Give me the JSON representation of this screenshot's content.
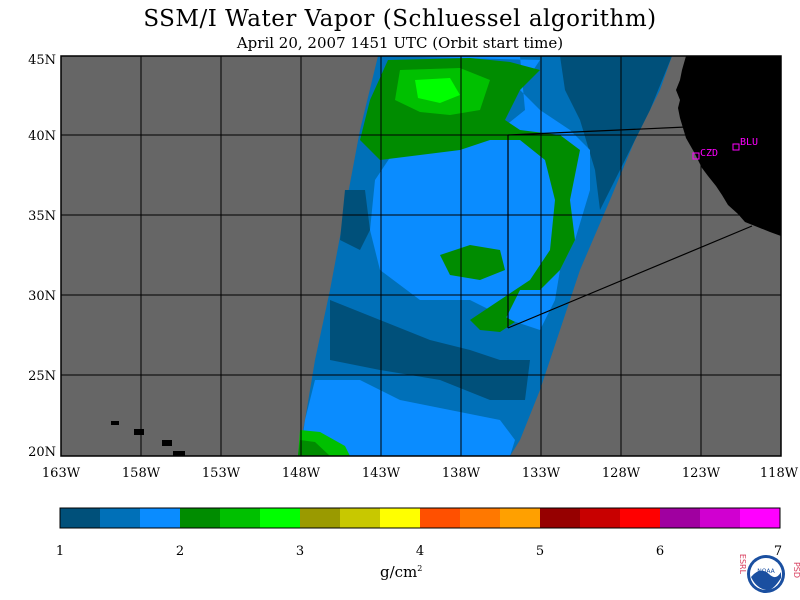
{
  "title": "SSM/I Water Vapor (Schluessel algorithm)",
  "subtitle": "April 20, 2007  1451 UTC  (Orbit start time)",
  "map": {
    "lat_labels": [
      "45N",
      "40N",
      "35N",
      "30N",
      "25N",
      "20N"
    ],
    "lon_labels": [
      "163W",
      "158W",
      "153W",
      "148W",
      "143W",
      "138W",
      "133W",
      "128W",
      "123W",
      "118W"
    ],
    "sites": [
      {
        "code": "CZD"
      },
      {
        "code": "BLU"
      }
    ]
  },
  "colorbar": {
    "tick_labels": [
      "1",
      "2",
      "3",
      "4",
      "5",
      "6",
      "7"
    ],
    "units_base": "g/cm",
    "units_exp": "2",
    "colors": [
      "#00507a",
      "#0070b8",
      "#0a8cff",
      "#008c00",
      "#00c000",
      "#00ff00",
      "#9a9a00",
      "#c8c800",
      "#ffff00",
      "#ff5000",
      "#ff7800",
      "#ffa000",
      "#960000",
      "#c80000",
      "#ff0000",
      "#a000a0",
      "#d000d0",
      "#ff00ff"
    ]
  },
  "logo": {
    "left_letters": "ESRL",
    "right_letters": "PSD",
    "center": "NOAA"
  }
}
